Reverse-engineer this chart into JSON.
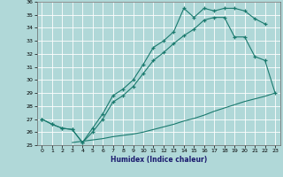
{
  "xlabel": "Humidex (Indice chaleur)",
  "bg_color": "#b0d8d8",
  "grid_color": "#ffffff",
  "line_color": "#1a7a6e",
  "xlim": [
    -0.5,
    23.5
  ],
  "ylim": [
    25,
    36
  ],
  "xticks": [
    0,
    1,
    2,
    3,
    4,
    5,
    6,
    7,
    8,
    9,
    10,
    11,
    12,
    13,
    14,
    15,
    16,
    17,
    18,
    19,
    20,
    21,
    22,
    23
  ],
  "yticks": [
    25,
    26,
    27,
    28,
    29,
    30,
    31,
    32,
    33,
    34,
    35,
    36
  ],
  "line1_x": [
    0,
    1,
    2,
    3,
    4,
    5,
    6,
    7,
    8,
    9,
    10,
    11,
    12,
    13,
    14,
    15,
    16,
    17,
    18,
    19,
    20,
    21,
    22
  ],
  "line1_y": [
    27.0,
    26.6,
    26.3,
    26.2,
    25.2,
    26.3,
    27.4,
    28.8,
    29.3,
    30.0,
    31.2,
    32.5,
    33.0,
    33.7,
    35.5,
    34.8,
    35.5,
    35.3,
    35.5,
    35.5,
    35.3,
    34.7,
    34.3
  ],
  "line2_x": [
    0,
    1,
    2,
    3,
    4,
    5,
    6,
    7,
    8,
    9,
    10,
    11,
    12,
    13,
    14,
    15,
    16,
    17,
    18,
    19,
    20,
    21,
    22,
    23
  ],
  "line2_y": [
    27.0,
    26.6,
    26.3,
    26.2,
    25.2,
    26.0,
    27.0,
    28.3,
    28.8,
    29.5,
    30.5,
    31.5,
    32.1,
    32.8,
    33.4,
    33.9,
    34.6,
    34.8,
    34.8,
    33.3,
    33.3,
    31.8,
    31.5,
    29.0
  ],
  "line3_x": [
    3,
    4,
    5,
    6,
    7,
    8,
    9,
    10,
    11,
    12,
    13,
    14,
    15,
    16,
    17,
    18,
    19,
    20,
    21,
    22,
    23
  ],
  "line3_y": [
    25.2,
    25.3,
    25.4,
    25.5,
    25.65,
    25.75,
    25.85,
    26.0,
    26.2,
    26.4,
    26.6,
    26.85,
    27.05,
    27.3,
    27.6,
    27.85,
    28.1,
    28.35,
    28.55,
    28.75,
    29.0
  ]
}
